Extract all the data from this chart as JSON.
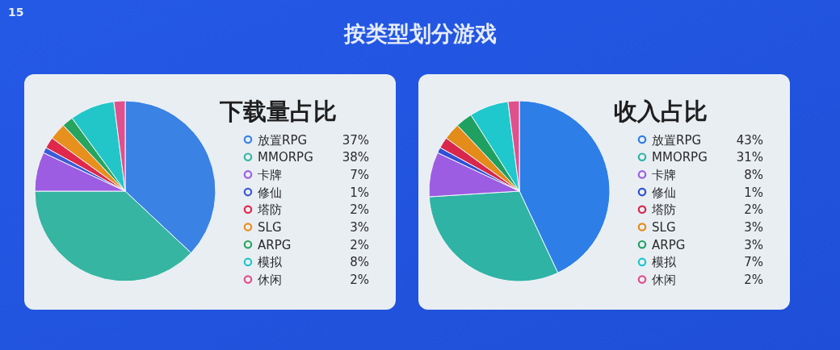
{
  "chart_data": [
    {
      "type": "pie",
      "title": "下载量占比",
      "categories": [
        "放置RPG",
        "MMORPG",
        "卡牌",
        "修仙",
        "塔防",
        "SLG",
        "ARPG",
        "模拟",
        "休闲"
      ],
      "values": [
        37,
        38,
        7,
        1,
        2,
        3,
        2,
        8,
        2
      ],
      "value_labels": [
        "37%",
        "38%",
        "7%",
        "1%",
        "2%",
        "3%",
        "2%",
        "8%",
        "2%"
      ],
      "colors": [
        "#3a82e4",
        "#35b5a2",
        "#9d5de2",
        "#3d5ad6",
        "#e0284a",
        "#e8901e",
        "#27a45e",
        "#22c6c8",
        "#e0508c"
      ],
      "legend": "right",
      "annotations": [
        "按类型划分游戏",
        "15"
      ]
    },
    {
      "type": "pie",
      "title": "收入占比",
      "categories": [
        "放置RPG",
        "MMORPG",
        "卡牌",
        "修仙",
        "塔防",
        "SLG",
        "ARPG",
        "模拟",
        "休闲"
      ],
      "values": [
        43,
        31,
        8,
        1,
        2,
        3,
        3,
        7,
        2
      ],
      "value_labels": [
        "43%",
        "31%",
        "8%",
        "1%",
        "2%",
        "3%",
        "3%",
        "7%",
        "2%"
      ],
      "colors": [
        "#2e7ee8",
        "#2fb3a5",
        "#9d5de2",
        "#3050d8",
        "#d8264c",
        "#e38c1a",
        "#20a060",
        "#1ec8cc",
        "#e0508c"
      ],
      "legend": "right"
    }
  ]
}
